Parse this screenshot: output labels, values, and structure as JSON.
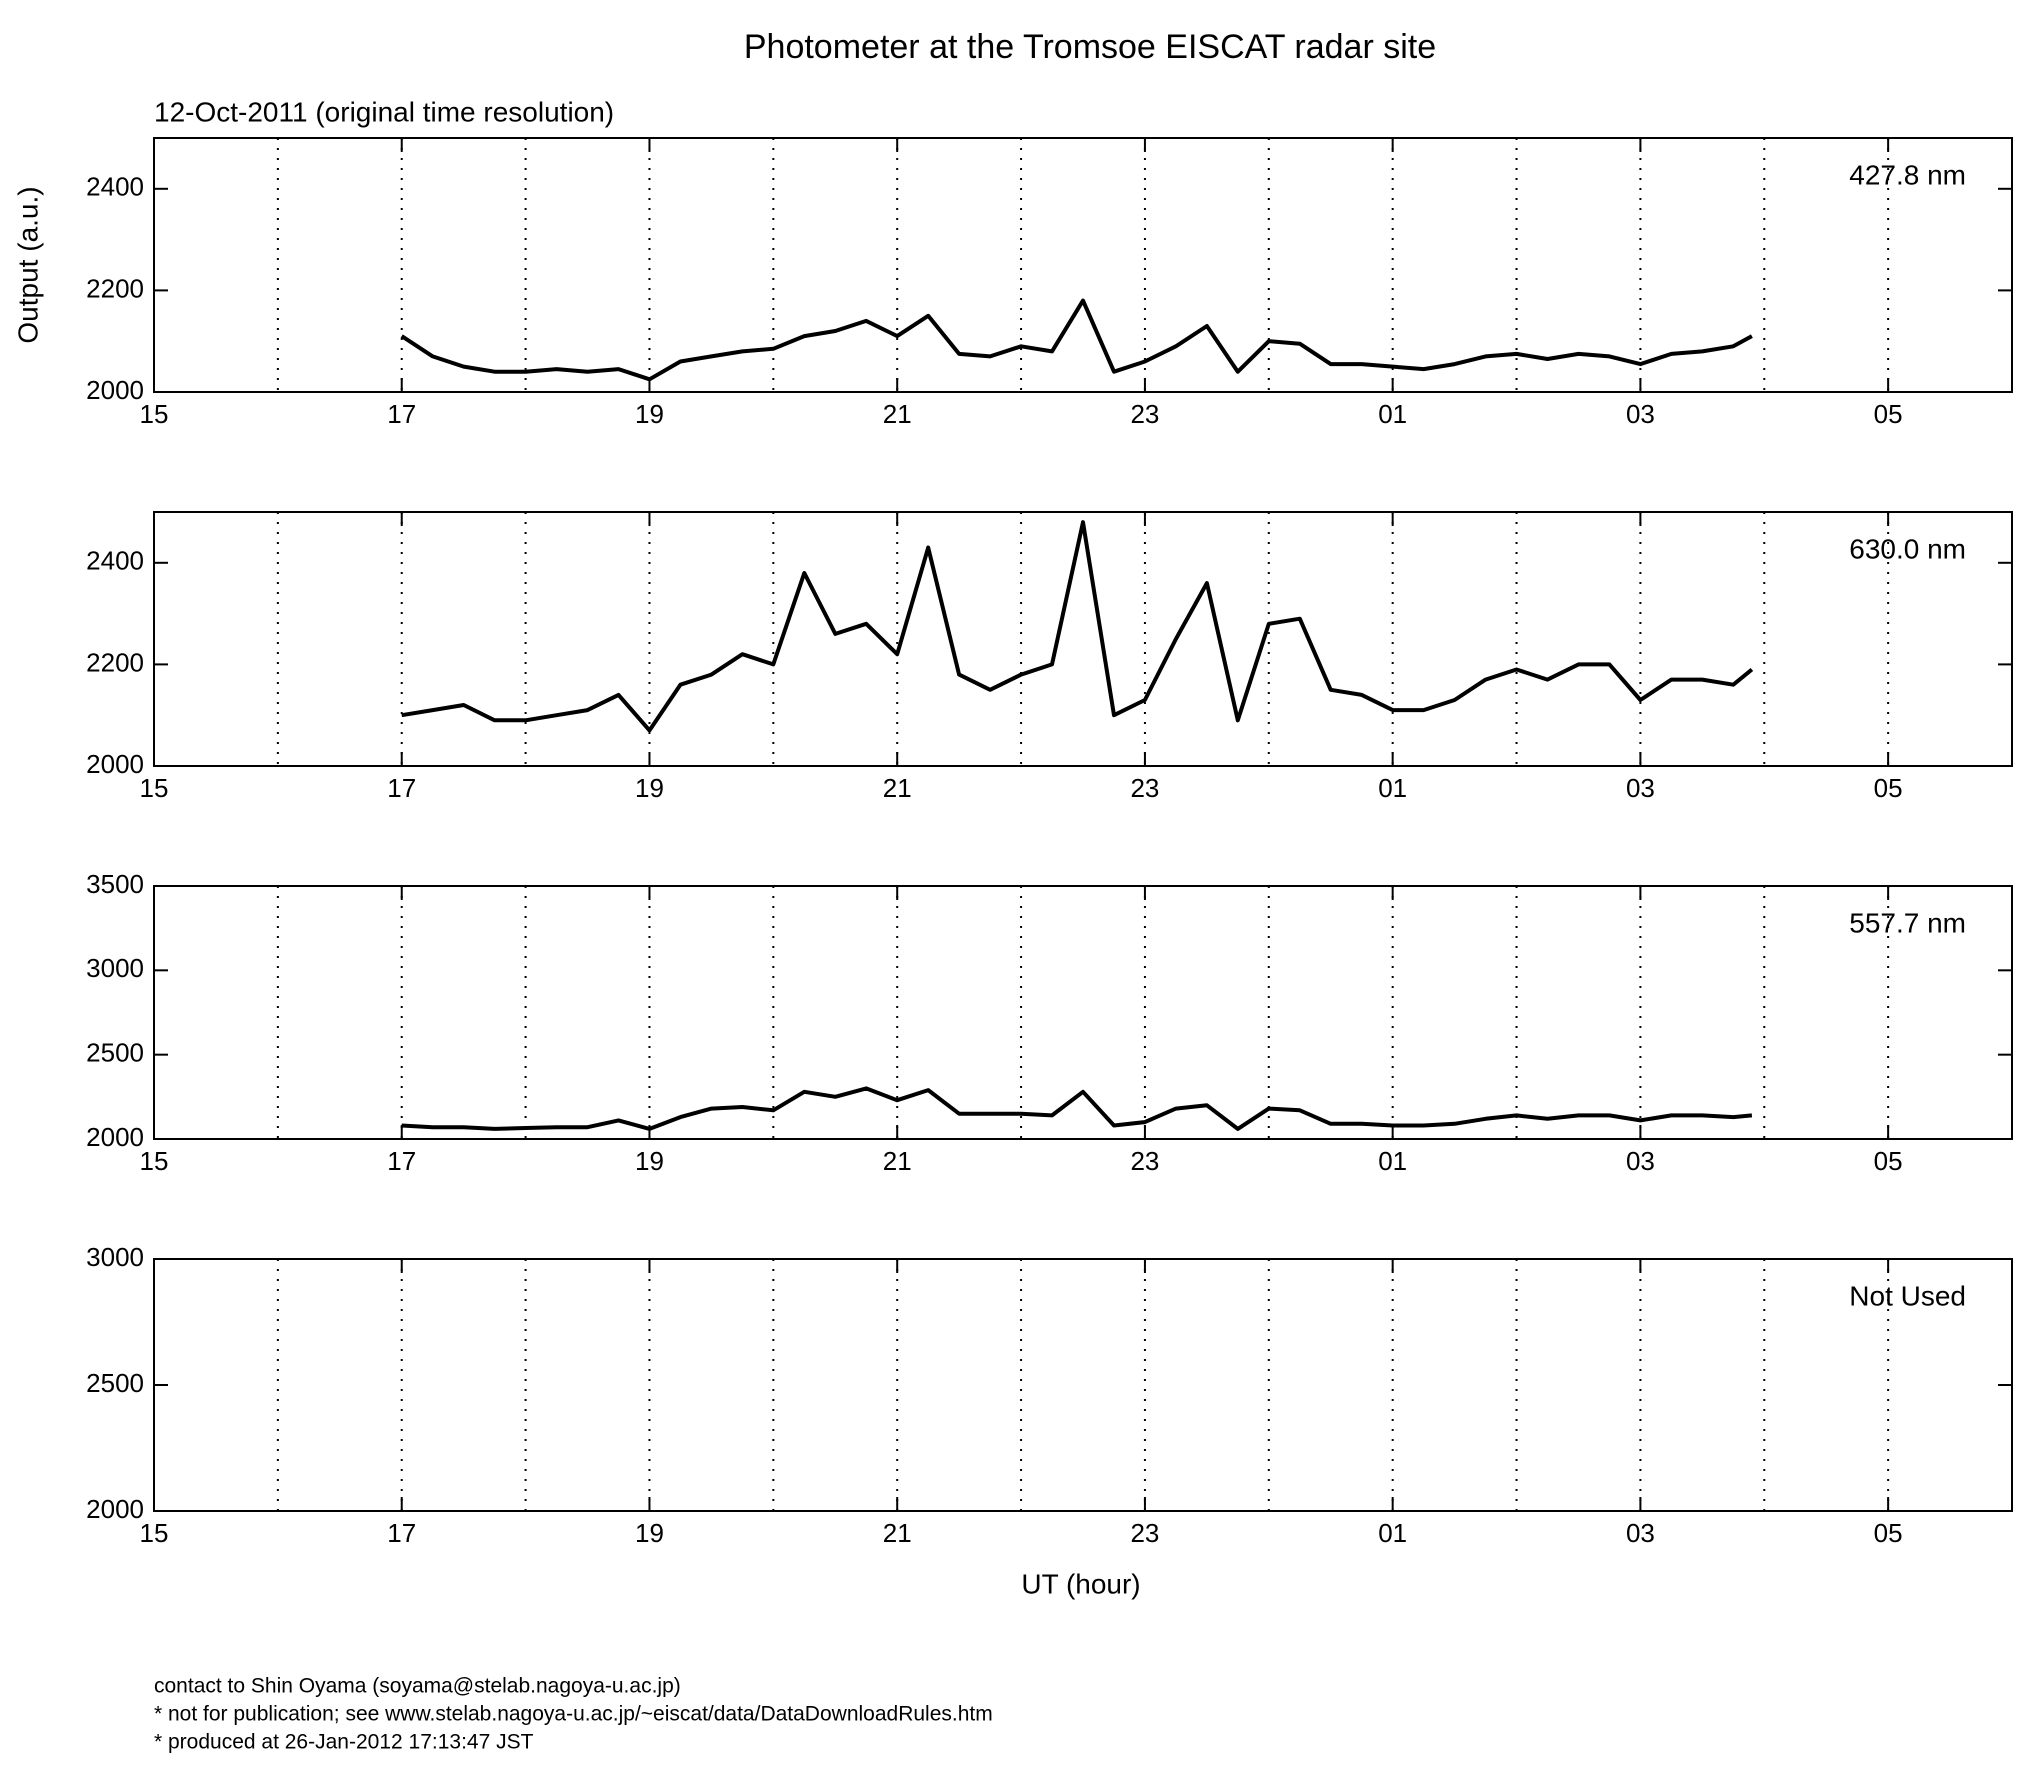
{
  "title": "Photometer at the Tromsoe EISCAT radar site",
  "subtitle": "12-Oct-2011 (original time resolution)",
  "footer": [
    "contact to Shin Oyama (soyama@stelab.nagoya-u.ac.jp)",
    "* not for publication; see www.stelab.nagoya-u.ac.jp/~eiscat/data/DataDownloadRules.htm",
    "* produced at 26-Jan-2012 17:13:47 JST"
  ],
  "chart_data": [
    {
      "type": "line",
      "annotation": "427.8 nm",
      "y_label": "Output (a.u.)",
      "x": [
        17.0,
        17.25,
        17.5,
        17.75,
        18.0,
        18.25,
        18.5,
        18.75,
        19.0,
        19.25,
        19.5,
        19.75,
        20.0,
        20.25,
        20.5,
        20.75,
        21.0,
        21.25,
        21.5,
        21.75,
        22.0,
        22.25,
        22.5,
        22.75,
        23.0,
        23.25,
        23.5,
        23.75,
        24.0,
        24.25,
        24.5,
        24.75,
        25.0,
        25.25,
        25.5,
        25.75,
        26.0,
        26.25,
        26.5,
        26.75,
        27.0,
        27.25,
        27.5,
        27.75,
        27.9
      ],
      "series": [
        {
          "color": "#000000",
          "values": [
            2110,
            2070,
            2050,
            2040,
            2040,
            2045,
            2040,
            2045,
            2025,
            2060,
            2070,
            2080,
            2085,
            2110,
            2120,
            2140,
            2110,
            2150,
            2075,
            2070,
            2090,
            2080,
            2180,
            2040,
            2060,
            2090,
            2130,
            2040,
            2100,
            2095,
            2055,
            2055,
            2050,
            2045,
            2055,
            2070,
            2075,
            2065,
            2075,
            2070,
            2055,
            2075,
            2080,
            2090,
            2110
          ]
        }
      ],
      "xlim": [
        15,
        30
      ],
      "xticks": [
        15,
        17,
        19,
        21,
        23,
        {
          "value": 25,
          "label": "01"
        },
        {
          "value": 27,
          "label": "03"
        },
        {
          "value": 29,
          "label": "05"
        }
      ],
      "xminor": [
        16,
        18,
        20,
        22,
        24,
        26,
        28
      ],
      "ylim": [
        2000,
        2500
      ],
      "yticks": [
        2000,
        2200,
        2400
      ],
      "grid": "dotted"
    },
    {
      "type": "line",
      "annotation": "630.0 nm",
      "x": [
        17.0,
        17.25,
        17.5,
        17.75,
        18.0,
        18.25,
        18.5,
        18.75,
        19.0,
        19.25,
        19.5,
        19.75,
        20.0,
        20.25,
        20.5,
        20.75,
        21.0,
        21.25,
        21.5,
        21.75,
        22.0,
        22.25,
        22.5,
        22.75,
        23.0,
        23.25,
        23.5,
        23.75,
        24.0,
        24.25,
        24.5,
        24.75,
        25.0,
        25.25,
        25.5,
        25.75,
        26.0,
        26.25,
        26.5,
        26.75,
        27.0,
        27.25,
        27.5,
        27.75,
        27.9
      ],
      "series": [
        {
          "color": "#000000",
          "values": [
            2100,
            2110,
            2120,
            2090,
            2090,
            2100,
            2110,
            2140,
            2070,
            2160,
            2180,
            2220,
            2200,
            2380,
            2260,
            2280,
            2220,
            2430,
            2180,
            2150,
            2180,
            2200,
            2480,
            2100,
            2130,
            2250,
            2360,
            2090,
            2280,
            2290,
            2150,
            2140,
            2110,
            2110,
            2130,
            2170,
            2190,
            2170,
            2200,
            2200,
            2130,
            2170,
            2170,
            2160,
            2190
          ]
        }
      ],
      "xlim": [
        15,
        30
      ],
      "xticks": [
        15,
        17,
        19,
        21,
        23,
        {
          "value": 25,
          "label": "01"
        },
        {
          "value": 27,
          "label": "03"
        },
        {
          "value": 29,
          "label": "05"
        }
      ],
      "xminor": [
        16,
        18,
        20,
        22,
        24,
        26,
        28
      ],
      "ylim": [
        2000,
        2500
      ],
      "yticks": [
        2000,
        2200,
        2400
      ],
      "grid": "dotted"
    },
    {
      "type": "line",
      "annotation": "557.7 nm",
      "x": [
        17.0,
        17.25,
        17.5,
        17.75,
        18.0,
        18.25,
        18.5,
        18.75,
        19.0,
        19.25,
        19.5,
        19.75,
        20.0,
        20.25,
        20.5,
        20.75,
        21.0,
        21.25,
        21.5,
        21.75,
        22.0,
        22.25,
        22.5,
        22.75,
        23.0,
        23.25,
        23.5,
        23.75,
        24.0,
        24.25,
        24.5,
        24.75,
        25.0,
        25.25,
        25.5,
        25.75,
        26.0,
        26.25,
        26.5,
        26.75,
        27.0,
        27.25,
        27.5,
        27.75,
        27.9
      ],
      "series": [
        {
          "color": "#000000",
          "values": [
            2080,
            2070,
            2070,
            2060,
            2065,
            2070,
            2070,
            2110,
            2060,
            2130,
            2180,
            2190,
            2170,
            2280,
            2250,
            2300,
            2230,
            2290,
            2150,
            2150,
            2150,
            2140,
            2280,
            2080,
            2100,
            2180,
            2200,
            2060,
            2180,
            2170,
            2090,
            2090,
            2080,
            2080,
            2090,
            2120,
            2140,
            2120,
            2140,
            2140,
            2110,
            2140,
            2140,
            2130,
            2140
          ]
        }
      ],
      "xlim": [
        15,
        30
      ],
      "xticks": [
        15,
        17,
        19,
        21,
        23,
        {
          "value": 25,
          "label": "01"
        },
        {
          "value": 27,
          "label": "03"
        },
        {
          "value": 29,
          "label": "05"
        }
      ],
      "xminor": [
        16,
        18,
        20,
        22,
        24,
        26,
        28
      ],
      "ylim": [
        2000,
        3500
      ],
      "yticks": [
        2000,
        2500,
        3000,
        3500
      ],
      "grid": "dotted"
    },
    {
      "type": "line",
      "annotation": "Not Used",
      "x_label": "UT (hour)",
      "x": [],
      "series": [],
      "xlim": [
        15,
        30
      ],
      "xticks": [
        15,
        17,
        19,
        21,
        23,
        {
          "value": 25,
          "label": "01"
        },
        {
          "value": 27,
          "label": "03"
        },
        {
          "value": 29,
          "label": "05"
        }
      ],
      "xminor": [
        16,
        18,
        20,
        22,
        24,
        26,
        28
      ],
      "ylim": [
        2000,
        3000
      ],
      "yticks": [
        2000,
        2500,
        3000
      ],
      "grid": "dotted"
    }
  ]
}
